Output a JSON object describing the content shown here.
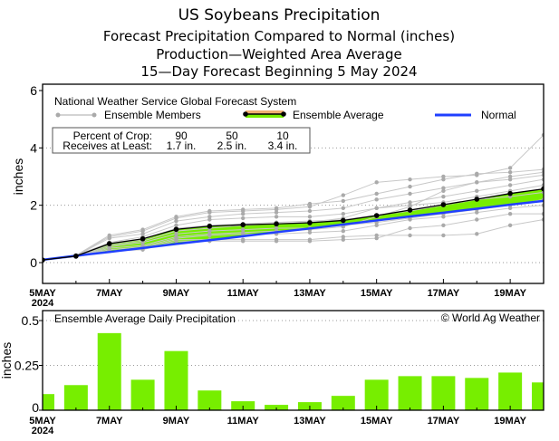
{
  "titles": {
    "line1": "US Soybeans Precipitation",
    "line2": "Forecast Precipitation Compared to Normal (inches)",
    "line3": "Production—Weighted Area Average",
    "line4": "15—Day Forecast Beginning 5 May 2024"
  },
  "colors": {
    "normal": "#2040ff",
    "average": "#000000",
    "above_fill": "#77ee00",
    "below_fill": "#f0b070",
    "members": "#aaaaaa",
    "bars": "#77ee00"
  },
  "chart_data": [
    {
      "type": "line",
      "ylabel": "inches",
      "ylim": [
        -0.6,
        6
      ],
      "yticks": [
        "0",
        "2",
        "4",
        "6"
      ],
      "grid": "dotted horizontal",
      "x": [
        "5 May",
        "6 May",
        "7 May",
        "8 May",
        "9 May",
        "10 May",
        "11 May",
        "12 May",
        "13 May",
        "14 May",
        "15 May",
        "16 May",
        "17 May",
        "18 May",
        "19 May",
        "20 May"
      ],
      "xtick_labels": [
        "5MAY",
        "7MAY",
        "9MAY",
        "11MAY",
        "13MAY",
        "15MAY",
        "17MAY",
        "19MAY"
      ],
      "xtick_year": "2024",
      "legend": {
        "source": "National Weather Service Global Forecast System",
        "members": "Ensemble Members",
        "average": "Ensemble Average",
        "normal": "Normal",
        "placement": "top-left"
      },
      "crop_table": {
        "row1_label": "Percent of Crop:",
        "row1": [
          "90",
          "50",
          "10"
        ],
        "row2_label": "Receives at Least:",
        "row2": [
          "1.7 in.",
          "2.5 in.",
          "3.4 in."
        ]
      },
      "series": [
        {
          "name": "Ensemble Average",
          "values": [
            0.09,
            0.23,
            0.66,
            0.83,
            1.16,
            1.27,
            1.32,
            1.35,
            1.39,
            1.47,
            1.64,
            1.83,
            2.02,
            2.21,
            2.41,
            2.57
          ]
        },
        {
          "name": "Normal",
          "values": [
            0.1,
            0.24,
            0.37,
            0.51,
            0.65,
            0.78,
            0.92,
            1.06,
            1.19,
            1.33,
            1.47,
            1.61,
            1.74,
            1.88,
            2.02,
            2.15
          ]
        }
      ],
      "members": [
        [
          0.1,
          0.25,
          0.9,
          1.1,
          1.55,
          1.75,
          1.8,
          1.85,
          1.95,
          2.35,
          2.8,
          2.9,
          3.0,
          3.05,
          3.3,
          4.45
        ],
        [
          0.1,
          0.25,
          0.95,
          1.15,
          1.6,
          1.8,
          1.85,
          1.9,
          2.05,
          2.15,
          2.4,
          2.65,
          2.9,
          3.1,
          3.15,
          3.25
        ],
        [
          0.1,
          0.2,
          0.5,
          0.6,
          0.9,
          1.0,
          1.05,
          1.1,
          1.15,
          1.25,
          1.6,
          1.95,
          2.5,
          2.8,
          3.0,
          3.15
        ],
        [
          0.1,
          0.22,
          0.6,
          0.75,
          1.1,
          1.2,
          1.3,
          1.35,
          1.4,
          1.55,
          1.9,
          2.1,
          2.3,
          2.5,
          2.7,
          2.9
        ],
        [
          0.1,
          0.2,
          0.4,
          0.5,
          0.8,
          0.8,
          0.8,
          0.8,
          0.8,
          0.9,
          0.95,
          0.95,
          0.95,
          1.0,
          1.3,
          1.5
        ],
        [
          0.1,
          0.25,
          0.7,
          0.9,
          1.3,
          1.5,
          1.55,
          1.6,
          1.6,
          1.7,
          1.9,
          2.0,
          2.1,
          2.3,
          2.5,
          2.7
        ],
        [
          0.1,
          0.2,
          0.45,
          0.55,
          0.85,
          0.95,
          1.0,
          1.0,
          1.05,
          1.1,
          1.3,
          1.5,
          1.6,
          1.75,
          1.9,
          2.0
        ],
        [
          0.1,
          0.23,
          0.65,
          0.8,
          1.2,
          1.3,
          1.35,
          1.4,
          1.45,
          1.5,
          1.65,
          1.8,
          2.0,
          2.2,
          2.3,
          2.45
        ],
        [
          0.1,
          0.2,
          0.55,
          0.7,
          1.0,
          1.1,
          1.15,
          1.2,
          1.2,
          1.3,
          1.4,
          1.55,
          1.7,
          1.85,
          2.0,
          2.2
        ],
        [
          0.1,
          0.24,
          0.85,
          1.0,
          1.45,
          1.6,
          1.7,
          1.75,
          1.8,
          1.9,
          2.2,
          2.4,
          2.6,
          2.8,
          2.9,
          3.05
        ],
        [
          0.1,
          0.2,
          0.4,
          0.45,
          0.75,
          0.75,
          0.75,
          0.75,
          0.75,
          0.8,
          0.85,
          1.2,
          1.3,
          1.5,
          1.7,
          1.7
        ]
      ]
    },
    {
      "type": "bar",
      "title": "Ensemble Average Daily Precipitation",
      "credit": "© World Ag Weather",
      "ylabel": "inches",
      "ylim": [
        0,
        0.55
      ],
      "yticks": [
        "0",
        "0.25",
        "0.5"
      ],
      "grid": "dotted horizontal",
      "categories": [
        "5 May",
        "6 May",
        "7 May",
        "8 May",
        "9 May",
        "10 May",
        "11 May",
        "12 May",
        "13 May",
        "14 May",
        "15 May",
        "16 May",
        "17 May",
        "18 May",
        "19 May",
        "20 May"
      ],
      "xtick_labels": [
        "5MAY",
        "7MAY",
        "9MAY",
        "11MAY",
        "13MAY",
        "15MAY",
        "17MAY",
        "19MAY"
      ],
      "xtick_year": "2024",
      "values": [
        0.09,
        0.14,
        0.43,
        0.17,
        0.33,
        0.11,
        0.05,
        0.03,
        0.045,
        0.08,
        0.17,
        0.19,
        0.19,
        0.18,
        0.21,
        0.155
      ]
    }
  ]
}
